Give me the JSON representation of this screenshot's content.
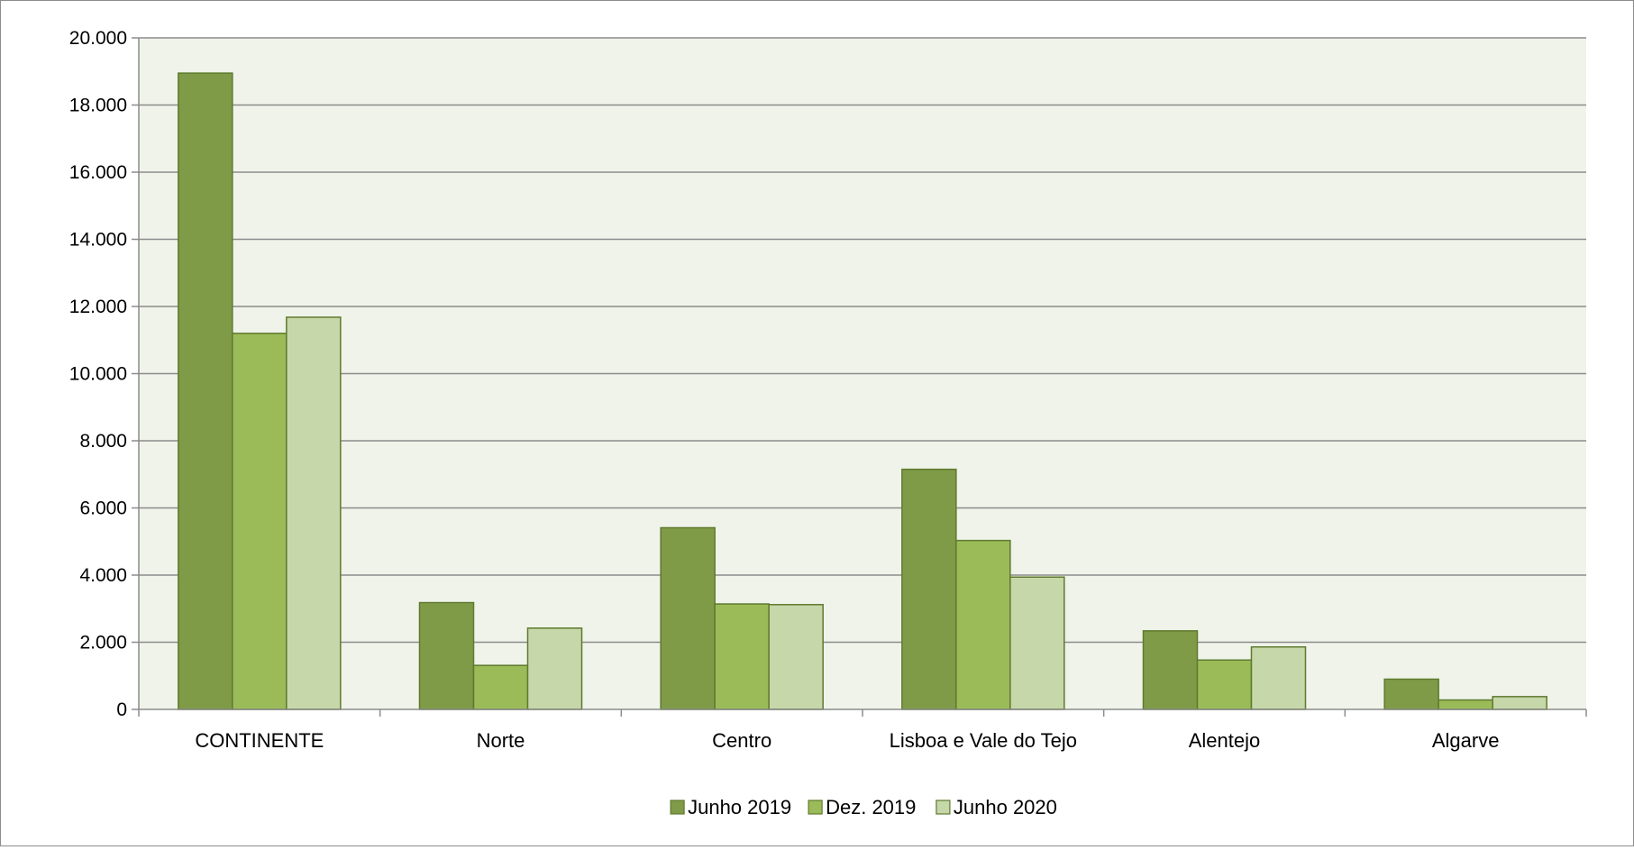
{
  "chart_data": {
    "type": "bar",
    "categories": [
      "CONTINENTE",
      "Norte",
      "Centro",
      "Lisboa e Vale do Tejo",
      "Alentejo",
      "Algarve"
    ],
    "series": [
      {
        "name": "Junho 2019",
        "values": [
          18950,
          3180,
          5410,
          7150,
          2340,
          900
        ],
        "color": "#7f9b48"
      },
      {
        "name": "Dez. 2019",
        "values": [
          11200,
          1310,
          3140,
          5030,
          1470,
          280
        ],
        "color": "#9bbb59"
      },
      {
        "name": "Junho 2020",
        "values": [
          11680,
          2420,
          3120,
          3940,
          1860,
          380
        ],
        "color": "#c6d7aa"
      }
    ],
    "ylim": [
      0,
      20000
    ],
    "yticks": [
      0,
      2000,
      4000,
      6000,
      8000,
      10000,
      12000,
      14000,
      16000,
      18000,
      20000
    ],
    "ytick_labels": [
      "0",
      "2.000",
      "4.000",
      "6.000",
      "8.000",
      "10.000",
      "12.000",
      "14.000",
      "16.000",
      "18.000",
      "20.000"
    ],
    "grid": true,
    "plot_background": "#eff3e9",
    "bar_border": "#5f7a2e",
    "legend_position": "bottom"
  }
}
